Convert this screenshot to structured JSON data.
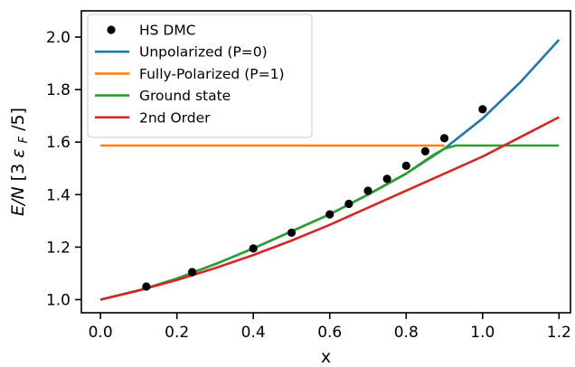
{
  "chart_data": {
    "type": "line",
    "xlabel": "x",
    "ylabel_main": "E/N",
    "ylabel_unit_prefix": "[3",
    "ylabel_unit_eps": "ε",
    "ylabel_unit_sub": "F",
    "ylabel_unit_suffix": "/5]",
    "xlim": [
      -0.05,
      1.23
    ],
    "ylim": [
      0.95,
      2.1
    ],
    "xticks": [
      0.0,
      0.2,
      0.4,
      0.6,
      0.8,
      1.0,
      1.2
    ],
    "xtick_labels": [
      "0.0",
      "0.2",
      "0.4",
      "0.6",
      "0.8",
      "1.0",
      "1.2"
    ],
    "yticks": [
      1.0,
      1.2,
      1.4,
      1.6,
      1.8,
      2.0
    ],
    "ytick_labels": [
      "1.0",
      "1.2",
      "1.4",
      "1.6",
      "1.8",
      "2.0"
    ],
    "legend_position": "top-left",
    "grid": false,
    "scatter": {
      "name": "HS DMC",
      "color": "#000000",
      "x": [
        0.12,
        0.24,
        0.4,
        0.5,
        0.6,
        0.65,
        0.7,
        0.75,
        0.8,
        0.85,
        0.9,
        1.0
      ],
      "y": [
        1.05,
        1.105,
        1.195,
        1.255,
        1.325,
        1.365,
        1.415,
        1.46,
        1.51,
        1.565,
        1.615,
        1.725
      ]
    },
    "series": [
      {
        "name": "Unpolarized (P=0)",
        "color": "#1f77b4",
        "x": [
          0.0,
          0.1,
          0.2,
          0.3,
          0.4,
          0.5,
          0.6,
          0.7,
          0.8,
          0.9,
          1.0,
          1.1,
          1.2
        ],
        "y": [
          1.0,
          1.035,
          1.08,
          1.135,
          1.195,
          1.26,
          1.325,
          1.4,
          1.48,
          1.575,
          1.69,
          1.83,
          1.99
        ]
      },
      {
        "name": "Fully-Polarized (P=1)",
        "color": "#ff7f0e",
        "x": [
          0.0,
          0.9
        ],
        "y": [
          1.587,
          1.587
        ]
      },
      {
        "name": "Ground state",
        "color": "#2ca02c",
        "x": [
          0.0,
          0.1,
          0.2,
          0.3,
          0.4,
          0.5,
          0.6,
          0.7,
          0.8,
          0.87,
          0.9,
          0.93,
          1.0,
          1.1,
          1.2
        ],
        "y": [
          1.0,
          1.035,
          1.08,
          1.135,
          1.195,
          1.26,
          1.325,
          1.4,
          1.48,
          1.55,
          1.575,
          1.587,
          1.587,
          1.587,
          1.587
        ]
      },
      {
        "name": "2nd Order",
        "color": "#d62728",
        "x": [
          0.0,
          0.1,
          0.2,
          0.3,
          0.4,
          0.5,
          0.6,
          0.7,
          0.8,
          0.9,
          1.0,
          1.1,
          1.2
        ],
        "y": [
          1.0,
          1.035,
          1.075,
          1.12,
          1.17,
          1.225,
          1.285,
          1.35,
          1.415,
          1.48,
          1.545,
          1.62,
          1.695
        ]
      }
    ]
  }
}
